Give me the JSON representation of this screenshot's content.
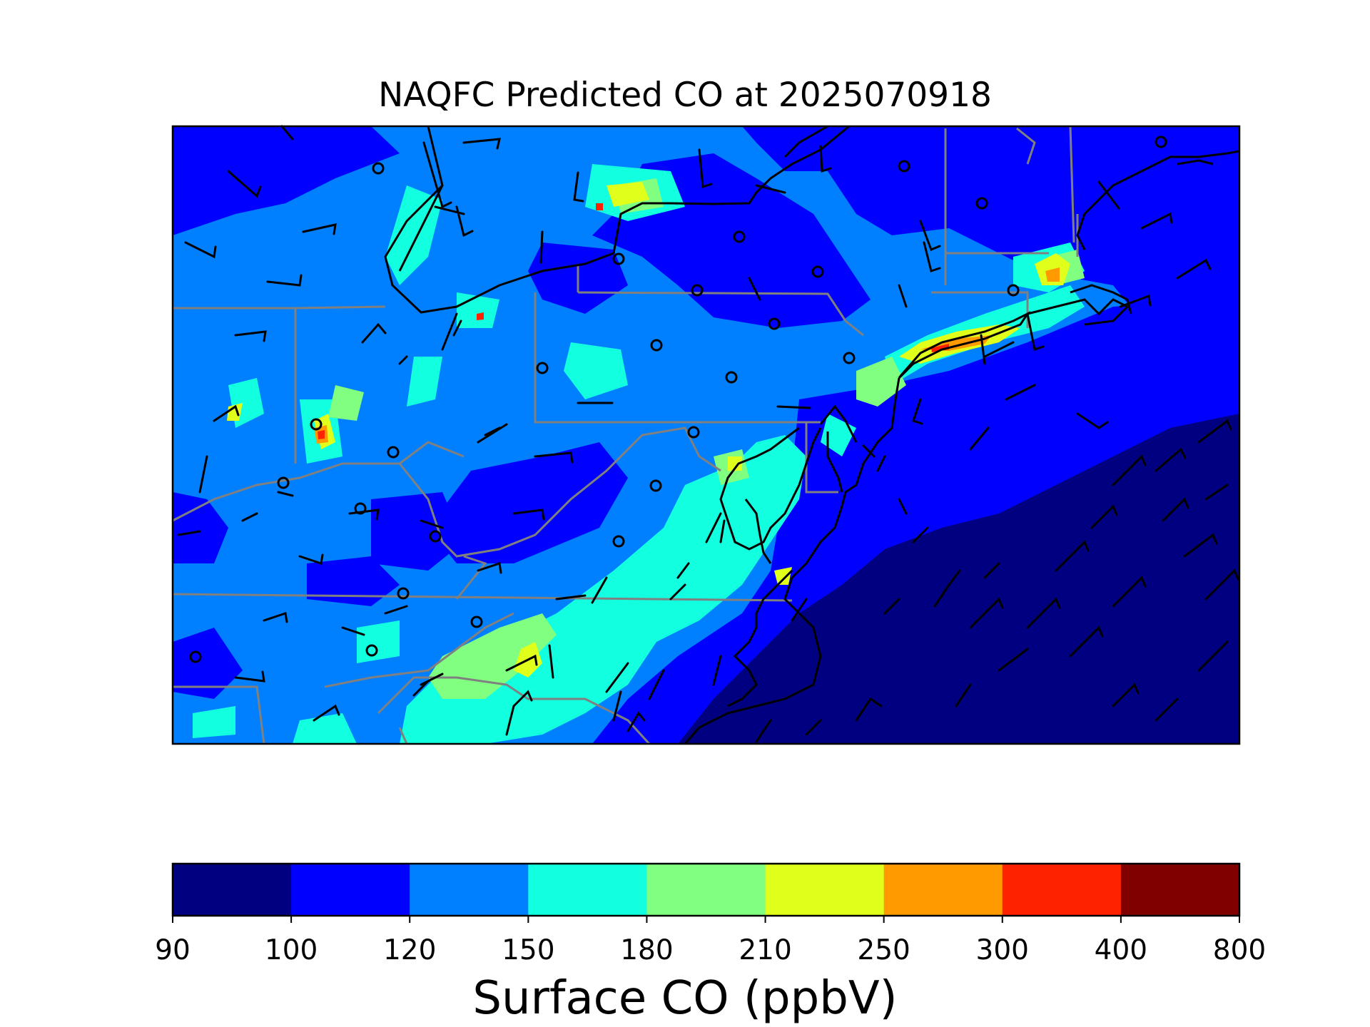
{
  "title": "NAQFC Predicted CO at 2025070918",
  "colorbar": {
    "label": "Surface CO (ppbV)",
    "ticks": [
      "90",
      "100",
      "120",
      "150",
      "180",
      "210",
      "250",
      "300",
      "400",
      "800"
    ],
    "colors": [
      "#000080",
      "#0000ff",
      "#0080ff",
      "#12ffe0",
      "#80ff80",
      "#e0ff1a",
      "#ff9a00",
      "#ff2200",
      "#800000"
    ]
  },
  "map_colors": {
    "land_background": "#0080ff",
    "state_border": "#808080",
    "coast": "#000000"
  },
  "map_features": [
    "CO concentration shading",
    "state boundaries",
    "coastlines",
    "wind barbs",
    "calm wind circles"
  ]
}
